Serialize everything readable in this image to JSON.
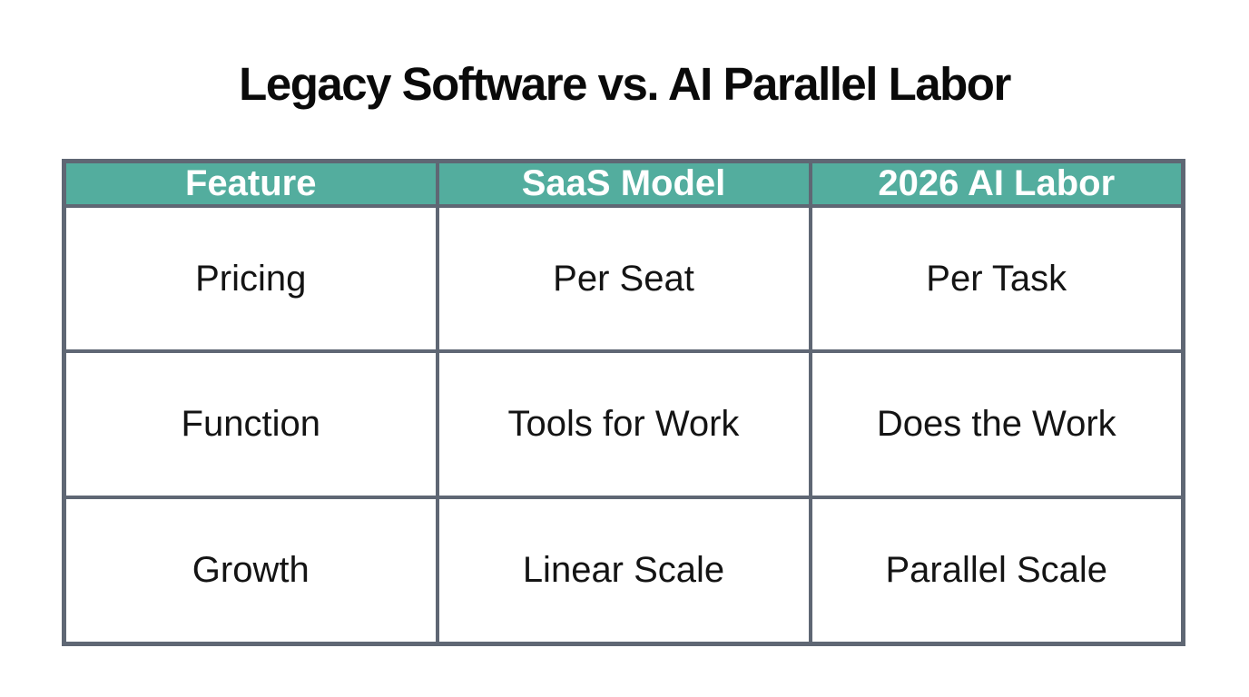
{
  "page_title": "Legacy Software vs. AI Parallel Labor",
  "chart_data": {
    "type": "table",
    "title": "Legacy Software vs. AI Parallel Labor",
    "columns": [
      "Feature",
      "SaaS Model",
      "2026 AI Labor"
    ],
    "rows": [
      [
        "Pricing",
        "Per Seat",
        "Per Task"
      ],
      [
        "Function",
        "Tools for Work",
        "Does the Work"
      ],
      [
        "Growth",
        "Linear Scale",
        "Parallel Scale"
      ]
    ],
    "layout": {
      "header_fill": "teal",
      "grid": "on",
      "title_position": "top-center"
    }
  },
  "colors": {
    "header_bg": "#53ad9e",
    "header_text": "#ffffff",
    "border": "#5f6774",
    "body_text": "#141414",
    "title_text": "#0a0a0a",
    "page_bg": "#ffffff"
  }
}
